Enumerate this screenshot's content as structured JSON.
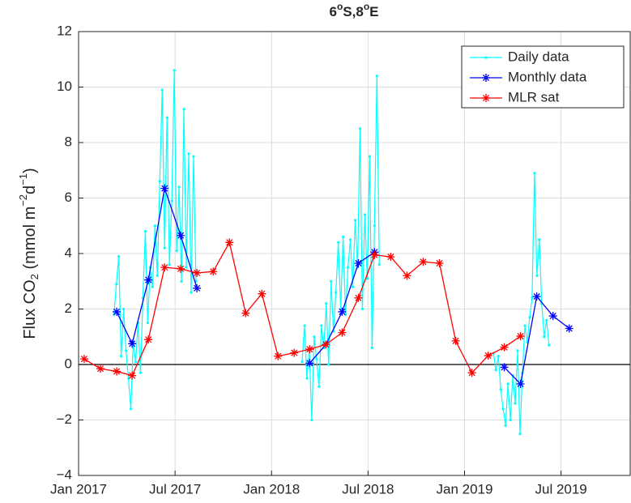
{
  "chart_data": {
    "type": "line",
    "title": [
      "6",
      "o",
      "S,8",
      "o",
      "E"
    ],
    "ylabel": [
      "Flux CO",
      "2",
      " (mmol m",
      "−2",
      "d",
      "−1",
      ")"
    ],
    "xlim": [
      0,
      34.3
    ],
    "ylim": [
      -4,
      12
    ],
    "xticks": [
      {
        "value": 0,
        "label": "Jan 2017"
      },
      {
        "value": 6,
        "label": "Jul 2017"
      },
      {
        "value": 12,
        "label": "Jan 2018"
      },
      {
        "value": 18,
        "label": "Jul 2018"
      },
      {
        "value": 24,
        "label": "Jan 2019"
      },
      {
        "value": 30,
        "label": "Jul 2019"
      }
    ],
    "yticks": [
      {
        "value": -4,
        "label": "−4"
      },
      {
        "value": -2,
        "label": "−2"
      },
      0,
      2,
      4,
      6,
      8,
      10,
      12
    ],
    "grid": true,
    "zero_line": true,
    "legend": "upper right",
    "series": [
      {
        "name": "Daily data",
        "color": "#00ffff",
        "marker": "dot",
        "x": [
          2.2,
          2.35,
          2.5,
          2.65,
          2.8,
          2.95,
          3.1,
          3.25,
          3.4,
          3.55,
          3.7,
          3.85,
          4.0,
          4.15,
          4.3,
          4.45,
          4.6,
          4.75,
          4.9,
          5.05,
          5.2,
          5.35,
          5.5,
          5.65,
          5.8,
          5.95,
          6.1,
          6.25,
          6.4,
          6.55,
          6.7,
          6.85,
          7.0,
          7.15,
          7.3,
          10,
          13.9,
          14.05,
          14.2,
          14.35,
          14.5,
          14.65,
          14.8,
          14.95,
          15.1,
          15.25,
          15.4,
          15.55,
          15.7,
          15.85,
          16.0,
          16.15,
          16.3,
          16.45,
          16.6,
          16.75,
          16.9,
          17.05,
          17.2,
          17.35,
          17.5,
          17.65,
          17.8,
          17.95,
          18.1,
          18.25,
          18.4,
          18.55,
          18.7,
          22,
          25.8,
          25.95,
          26.1,
          26.25,
          26.4,
          26.55,
          26.7,
          26.85,
          27.0,
          27.15,
          27.3,
          27.45,
          27.6,
          27.75,
          27.9,
          28.05,
          28.2,
          28.35,
          28.5,
          28.65,
          28.8,
          28.95,
          29.1,
          29.25
        ],
        "values": [
          1.8,
          2.9,
          3.9,
          0.3,
          2.0,
          0.5,
          -0.5,
          -1.6,
          0.8,
          0.1,
          1.5,
          -0.3,
          2.4,
          4.8,
          1.5,
          3.5,
          2.8,
          5.0,
          3.2,
          6.6,
          9.9,
          4.2,
          8.9,
          3.6,
          5.9,
          10.6,
          4.1,
          6.4,
          3.0,
          9.2,
          3.5,
          7.6,
          2.6,
          7.5,
          3.0,
          null,
          0.1,
          1.4,
          -0.5,
          0.5,
          -2.0,
          1.0,
          0.2,
          -0.8,
          1.4,
          0.6,
          2.2,
          0.0,
          3.0,
          1.2,
          2.6,
          4.4,
          2.0,
          4.6,
          1.8,
          3.5,
          4.5,
          2.8,
          5.2,
          3.5,
          8.5,
          2.0,
          5.4,
          3.1,
          7.5,
          0.6,
          5.0,
          10.4,
          3.6,
          null,
          0.4,
          -0.2,
          0.3,
          -0.9,
          -1.6,
          -2.2,
          -0.7,
          -2.0,
          -0.4,
          -1.4,
          0.5,
          -2.5,
          -0.3,
          1.4,
          0.8,
          1.7,
          2.4,
          6.9,
          3.2,
          4.5,
          2.2,
          1.0,
          1.6,
          0.7
        ]
      },
      {
        "name": "Monthly data",
        "color": "#0000ff",
        "marker": "star",
        "x": [
          2.37,
          3.33,
          4.34,
          5.35,
          6.35,
          7.36,
          11,
          14.37,
          15.38,
          16.39,
          17.4,
          18.4,
          22,
          26.47,
          27.48,
          28.49,
          29.5,
          30.51
        ],
        "values": [
          1.9,
          0.75,
          3.05,
          6.35,
          4.65,
          2.75,
          null,
          0.05,
          0.72,
          1.9,
          3.65,
          4.05,
          null,
          -0.1,
          -0.7,
          2.45,
          1.75,
          1.3
        ]
      },
      {
        "name": "MLR sat",
        "color": "#ff0000",
        "marker": "star",
        "x": [
          0.35,
          1.36,
          2.37,
          3.33,
          4.34,
          5.35,
          6.35,
          7.36,
          8.37,
          9.38,
          10.39,
          11.4,
          12.4,
          13.41,
          14.37,
          15.38,
          16.39,
          17.4,
          18.4,
          19.41,
          20.42,
          21.43,
          22.44,
          23.45,
          24.46,
          25.47,
          26.47,
          27.48
        ],
        "values": [
          0.2,
          -0.15,
          -0.25,
          -0.4,
          0.9,
          3.5,
          3.45,
          3.3,
          3.35,
          4.4,
          1.85,
          2.55,
          0.3,
          0.42,
          0.55,
          0.72,
          1.15,
          2.4,
          3.95,
          3.88,
          3.2,
          3.7,
          3.65,
          0.85,
          -0.3,
          0.32,
          0.62,
          1.02
        ]
      }
    ]
  }
}
